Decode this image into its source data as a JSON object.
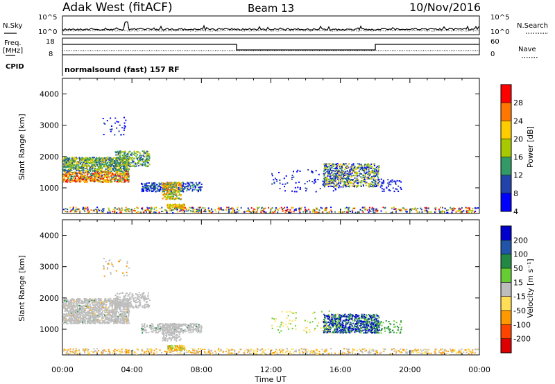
{
  "header": {
    "title": "Adak West (fitACF)",
    "beam": "Beam 13",
    "date": "10/Nov/2016"
  },
  "top_panels": {
    "nsky_label": "N.Sky",
    "nsearch_label": "N.Search",
    "nsky_ticks": [
      "10^5",
      "10^0"
    ],
    "nsearch_ticks": [
      "10^5",
      "10^0"
    ],
    "freq_label_1": "Freq.",
    "freq_label_2": "[MHz]",
    "freq_ticks": [
      "18",
      "8"
    ],
    "nave_label": "Nave",
    "nave_ticks": [
      "60",
      "0"
    ],
    "cpid_label": "CPID",
    "cpid_text": "normalsound (fast) 157 RF"
  },
  "chart_data": [
    {
      "type": "heatmap",
      "name": "power",
      "ylabel": "Slant Range [km]",
      "yticks": [
        "4000",
        "3000",
        "2000",
        "1000"
      ],
      "ylim": [
        180,
        4500
      ],
      "colorbar_label": "Power [dB]",
      "colorbar_ticks": [
        "28",
        "24",
        "20",
        "16",
        "12",
        "8",
        "4"
      ],
      "colorbar_colors": [
        "#ff0000",
        "#ff7700",
        "#ffcc00",
        "#a8c800",
        "#339966",
        "#2244aa",
        "#0000ff"
      ]
    },
    {
      "type": "heatmap",
      "name": "velocity",
      "ylabel": "Slant Range [km]",
      "yticks": [
        "4000",
        "3000",
        "2000",
        "1000"
      ],
      "ylim": [
        180,
        4500
      ],
      "colorbar_label": "Velocity [m s⁻¹]",
      "colorbar_ticks": [
        "200",
        "100",
        "50",
        "15",
        "-15",
        "-50",
        "-100",
        "-200"
      ],
      "colorbar_colors": [
        "#0000cc",
        "#2255aa",
        "#228844",
        "#66cc33",
        "#bdbdbd",
        "#ffdd55",
        "#ff9900",
        "#ff4400",
        "#dd0000"
      ]
    }
  ],
  "xaxis": {
    "ticks": [
      "00:00",
      "04:00",
      "08:00",
      "12:00",
      "16:00",
      "20:00",
      "00:00"
    ],
    "label": "Time UT"
  }
}
